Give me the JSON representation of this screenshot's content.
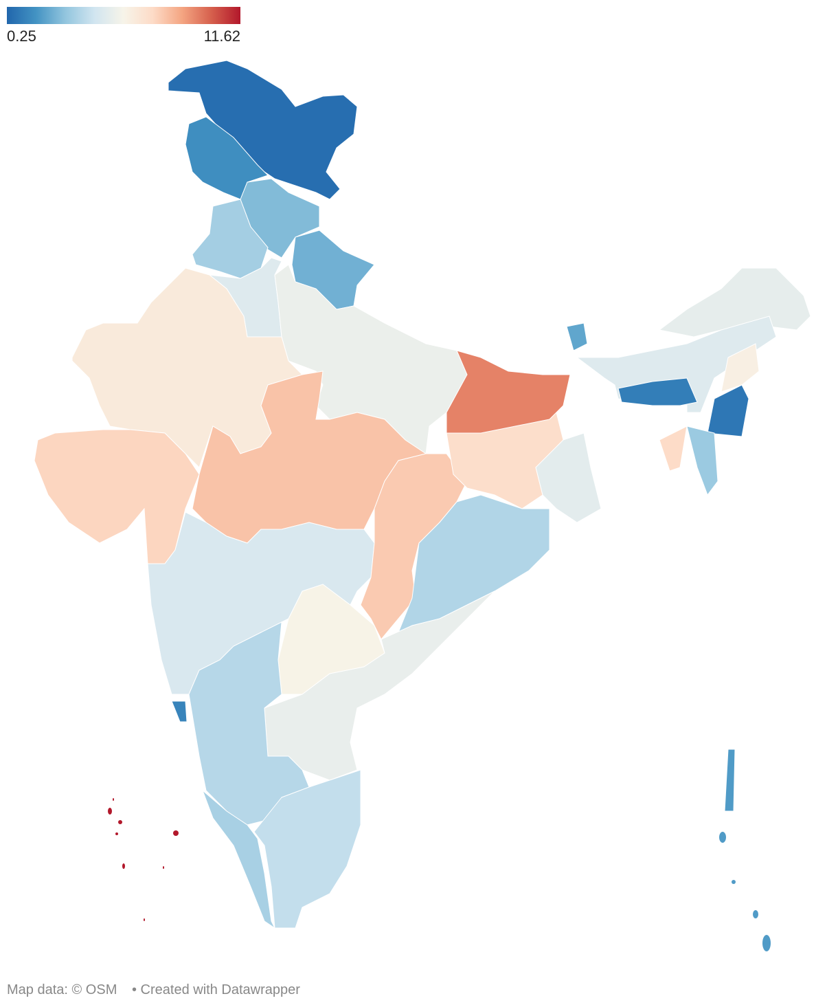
{
  "legend": {
    "min": 0.25,
    "max": 11.62,
    "colors": [
      "#2166ac",
      "#4393c3",
      "#92c5de",
      "#d1e5f0",
      "#f7f4e9",
      "#fddbc7",
      "#f4a582",
      "#d6604d",
      "#b2182b"
    ]
  },
  "regions": {
    "values": [
      0.5,
      1.5,
      2.8,
      3.5,
      2.5,
      5.0,
      5.5,
      6.5,
      7.5,
      8.0,
      4.8,
      7.8,
      7.2,
      9.5,
      5.2,
      3.8,
      6.0,
      5.4,
      3.9,
      1.2,
      3.6,
      4.2,
      2.2,
      5.3,
      5.0,
      1.0,
      6.2,
      0.8,
      3.3,
      7.3,
      11.62,
      1.9
    ]
  },
  "footer": {
    "source": "Map data: © OSM",
    "credit": "• Created with Datawrapper"
  }
}
